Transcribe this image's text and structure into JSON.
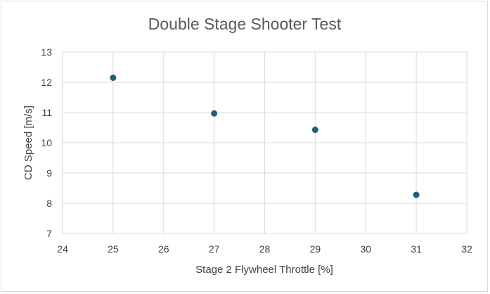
{
  "chart_data": {
    "type": "scatter",
    "title": "Double Stage Shooter Test",
    "xlabel": "Stage 2 Flywheel Throttle [%]",
    "ylabel": "CD Speed [m/s]",
    "xlim": [
      24,
      32
    ],
    "ylim": [
      7,
      13
    ],
    "xticks": [
      24,
      25,
      26,
      27,
      28,
      29,
      30,
      31,
      32
    ],
    "yticks": [
      7,
      8,
      9,
      10,
      11,
      12,
      13
    ],
    "grid": true,
    "legend": "none",
    "marker_color": "#1f5f7a",
    "series": [
      {
        "points": [
          {
            "x": 25,
            "y": 12.15
          },
          {
            "x": 27,
            "y": 10.97
          },
          {
            "x": 29,
            "y": 10.43
          },
          {
            "x": 31,
            "y": 8.28
          }
        ]
      }
    ]
  }
}
